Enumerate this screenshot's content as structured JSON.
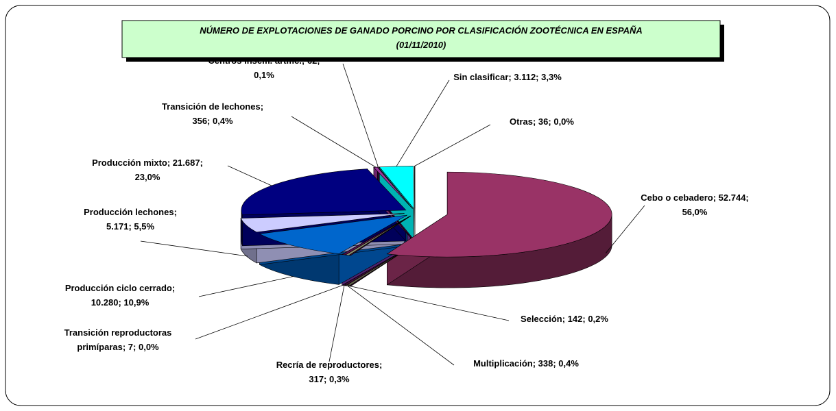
{
  "chart_data": {
    "type": "pie3d",
    "title": "NÚMERO DE EXPLOTACIONES DE GANADO PORCINO POR CLASIFICACIÓN ZOOTÉCNICA EN ESPAÑA",
    "subtitle": "(01/11/2010)",
    "values": [
      52744,
      142,
      338,
      317,
      7,
      10280,
      5171,
      21687,
      356,
      62,
      3112,
      36
    ],
    "value_labels": [
      [
        "Cebo o cebadero; 52.744;",
        "56,0%"
      ],
      [
        "Selección; 142; 0,2%"
      ],
      [
        "Multiplicación; 338; 0,4%"
      ],
      [
        "Recría de reproductores;",
        "317; 0,3%"
      ],
      [
        "Transición  reproductoras",
        "primíparas; 7; 0,0%"
      ],
      [
        "Producción ciclo cerrado;",
        "10.280; 10,9%"
      ],
      [
        "Producción lechones;",
        "5.171; 5,5%"
      ],
      [
        "Producción mixto; 21.687;",
        "23,0%"
      ],
      [
        "Transición de lechones;",
        "356; 0,4%"
      ],
      [
        "Centros insem. artific.; 62;",
        "0,1%"
      ],
      [
        "Sin clasificar; 3.112; 3,3%"
      ],
      [
        "Otras; 36; 0,0%"
      ]
    ],
    "colors": [
      "#993366",
      "#4d1040",
      "#8a8a6a",
      "#5a1050",
      "#7030a0",
      "#0066cc",
      "#ccccff",
      "#000080",
      "#993399",
      "#660066",
      "#00ffff",
      "#ffffff"
    ]
  }
}
